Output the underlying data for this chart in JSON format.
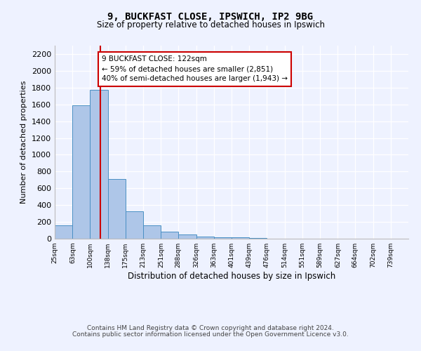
{
  "title1": "9, BUCKFAST CLOSE, IPSWICH, IP2 9BG",
  "title2": "Size of property relative to detached houses in Ipswich",
  "xlabel": "Distribution of detached houses by size in Ipswich",
  "ylabel": "Number of detached properties",
  "annotation_line1": "9 BUCKFAST CLOSE: 122sqm",
  "annotation_line2": "← 59% of detached houses are smaller (2,851)",
  "annotation_line3": "40% of semi-detached houses are larger (1,943) →",
  "footer1": "Contains HM Land Registry data © Crown copyright and database right 2024.",
  "footer2": "Contains public sector information licensed under the Open Government Licence v3.0.",
  "bar_edges": [
    25,
    63,
    100,
    138,
    175,
    213,
    251,
    288,
    326,
    363,
    401,
    439,
    476,
    514,
    551,
    589,
    627,
    664,
    702,
    739,
    777
  ],
  "bar_heights": [
    160,
    1590,
    1770,
    710,
    325,
    160,
    85,
    50,
    25,
    20,
    15,
    10,
    0,
    0,
    0,
    0,
    0,
    0,
    0,
    0
  ],
  "bar_color": "#aec6e8",
  "bar_edge_color": "#4a90c4",
  "property_size": 122,
  "vline_color": "#cc0000",
  "ylim": [
    0,
    2300
  ],
  "yticks": [
    0,
    200,
    400,
    600,
    800,
    1000,
    1200,
    1400,
    1600,
    1800,
    2000,
    2200
  ],
  "bg_color": "#eef2ff",
  "grid_color": "#ffffff",
  "annotation_box_color": "#cc0000"
}
